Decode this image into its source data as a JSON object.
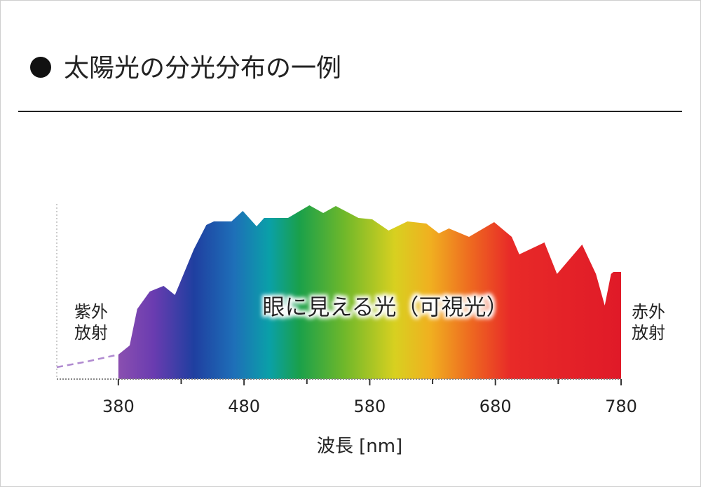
{
  "chart_data": {
    "type": "area",
    "title": "太陽光の分光分布の一例",
    "xlabel": "波長 [nm]",
    "annotations": {
      "uv": [
        "紫外",
        "放射"
      ],
      "ir": [
        "赤外",
        "放射"
      ],
      "visible": "眼に見える光（可視光）"
    },
    "xlim": [
      331,
      780
    ],
    "xticks": [
      380,
      480,
      580,
      680,
      780
    ],
    "xminor": [
      430,
      530,
      630,
      730
    ],
    "series": [
      {
        "style": "spectrum",
        "x": [
          380,
          389,
          395,
          405,
          416,
          425,
          440,
          450,
          456,
          470,
          479,
          490,
          496,
          515,
          532,
          543,
          553,
          571,
          582,
          595,
          610,
          625,
          635,
          643,
          659,
          679,
          693,
          699,
          719,
          729,
          749,
          760,
          767,
          772,
          774,
          780
        ],
        "values": [
          35,
          48,
          100,
          125,
          133,
          120,
          185,
          220,
          225,
          225,
          240,
          218,
          230,
          230,
          248,
          237,
          247,
          230,
          228,
          212,
          225,
          222,
          208,
          215,
          203,
          224,
          203,
          178,
          195,
          150,
          192,
          150,
          105,
          150,
          153,
          153
        ]
      },
      {
        "style": "dashed",
        "color": "#b08ad0",
        "x": [
          331,
          355,
          380
        ],
        "values": [
          17,
          25,
          35
        ]
      }
    ]
  }
}
